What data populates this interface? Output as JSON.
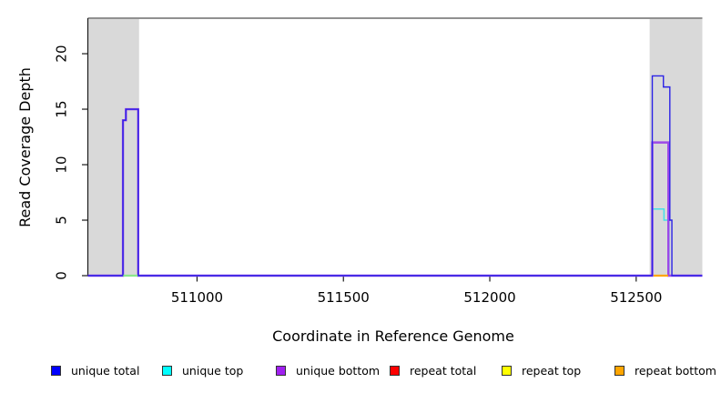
{
  "chart_data": {
    "type": "line",
    "style": "step-coverage-plot",
    "title": "",
    "xlabel": "Coordinate in Reference Genome",
    "ylabel": "Read Coverage Depth",
    "xlim": [
      510627,
      512726
    ],
    "ylim": [
      0,
      23.2
    ],
    "grid": false,
    "x_ticks": [
      511000,
      511500,
      512000,
      512500
    ],
    "y_ticks": [
      0,
      5,
      10,
      15,
      20
    ],
    "top_border_color": "#909090",
    "axis_color": "#1a1a1a",
    "shaded_regions": [
      {
        "x1": 510627,
        "x2": 510802,
        "color": "#d9d9d9"
      },
      {
        "x1": 512546,
        "x2": 512726,
        "color": "#d9d9d9"
      }
    ],
    "series": [
      {
        "name": "repeat total",
        "legend_color": "#ff0000",
        "line_color": "#dd0000",
        "points": [
          [
            510627,
            0
          ],
          [
            512726,
            0
          ]
        ]
      },
      {
        "name": "repeat top",
        "legend_color": "#ffff00",
        "line_color": "#f0e800",
        "points": [
          [
            510627,
            0
          ],
          [
            512726,
            0
          ]
        ]
      },
      {
        "name": "repeat bottom",
        "legend_color": "#ffa500",
        "line_color": "#ffa500",
        "points": [
          [
            510627,
            0
          ],
          [
            512726,
            0
          ]
        ]
      },
      {
        "name": "unique top",
        "legend_color": "#00ffff",
        "line_color": "#45dfe8",
        "points": [
          [
            510627,
            0
          ],
          [
            512555,
            0
          ],
          [
            512555,
            6
          ],
          [
            512595,
            6
          ],
          [
            512595,
            5
          ],
          [
            512612,
            5
          ],
          [
            512612,
            0
          ],
          [
            512726,
            0
          ]
        ]
      },
      {
        "name": "unique bottom",
        "legend_color": "#a020f0",
        "line_color": "#9c49e8",
        "points": [
          [
            510627,
            0
          ],
          [
            510747,
            0
          ],
          [
            510747,
            14
          ],
          [
            510757,
            14
          ],
          [
            510757,
            15
          ],
          [
            510799,
            15
          ],
          [
            510799,
            0
          ],
          [
            512555,
            0
          ],
          [
            512555,
            12
          ],
          [
            512610,
            12
          ],
          [
            512610,
            0
          ],
          [
            512726,
            0
          ]
        ]
      },
      {
        "name": "unique total",
        "legend_color": "#0000ff",
        "line_color": "#2b22e6",
        "points": [
          [
            510627,
            0
          ],
          [
            510747,
            0
          ],
          [
            510747,
            14
          ],
          [
            510757,
            14
          ],
          [
            510757,
            15
          ],
          [
            510799,
            15
          ],
          [
            510799,
            0
          ],
          [
            512555,
            0
          ],
          [
            512555,
            18
          ],
          [
            512593,
            18
          ],
          [
            512593,
            17
          ],
          [
            512615,
            17
          ],
          [
            512615,
            5
          ],
          [
            512622,
            5
          ],
          [
            512622,
            0
          ],
          [
            512726,
            0
          ]
        ]
      }
    ],
    "baseline_overlap_segments": [
      {
        "x1": 510748,
        "x2": 510797,
        "value": 0,
        "color": "#8ce68c"
      },
      {
        "x1": 512560,
        "x2": 512609,
        "value": 0,
        "color": "#ffa500"
      }
    ],
    "legend_position": "bottom",
    "legend": [
      {
        "label": "unique total",
        "color": "#0000ff"
      },
      {
        "label": "unique top",
        "color": "#00ffff"
      },
      {
        "label": "unique bottom",
        "color": "#a020f0"
      },
      {
        "label": "repeat total",
        "color": "#ff0000"
      },
      {
        "label": "repeat top",
        "color": "#ffff00"
      },
      {
        "label": "repeat bottom",
        "color": "#ffa500"
      }
    ]
  }
}
